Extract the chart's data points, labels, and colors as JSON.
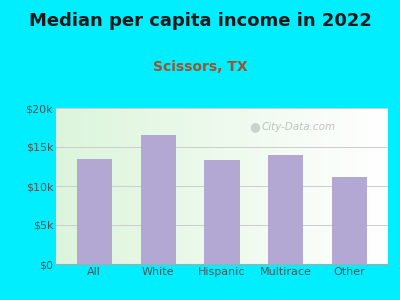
{
  "title": "Median per capita income in 2022",
  "subtitle": "Scissors, TX",
  "categories": [
    "All",
    "White",
    "Hispanic",
    "Multirace",
    "Other"
  ],
  "values": [
    13400,
    16500,
    13300,
    14000,
    11200
  ],
  "bar_color": "#b3a8d4",
  "title_fontsize": 13,
  "subtitle_fontsize": 10,
  "subtitle_color": "#a0522d",
  "title_color": "#1a1a1a",
  "bg_outer": "#00eeff",
  "ylim": [
    0,
    20000
  ],
  "yticks": [
    0,
    5000,
    10000,
    15000,
    20000
  ],
  "ytick_labels": [
    "$0",
    "$5k",
    "$10k",
    "$15k",
    "$20k"
  ],
  "tick_color": "#555555",
  "grid_color": "#cccccc",
  "watermark": "City-Data.com"
}
